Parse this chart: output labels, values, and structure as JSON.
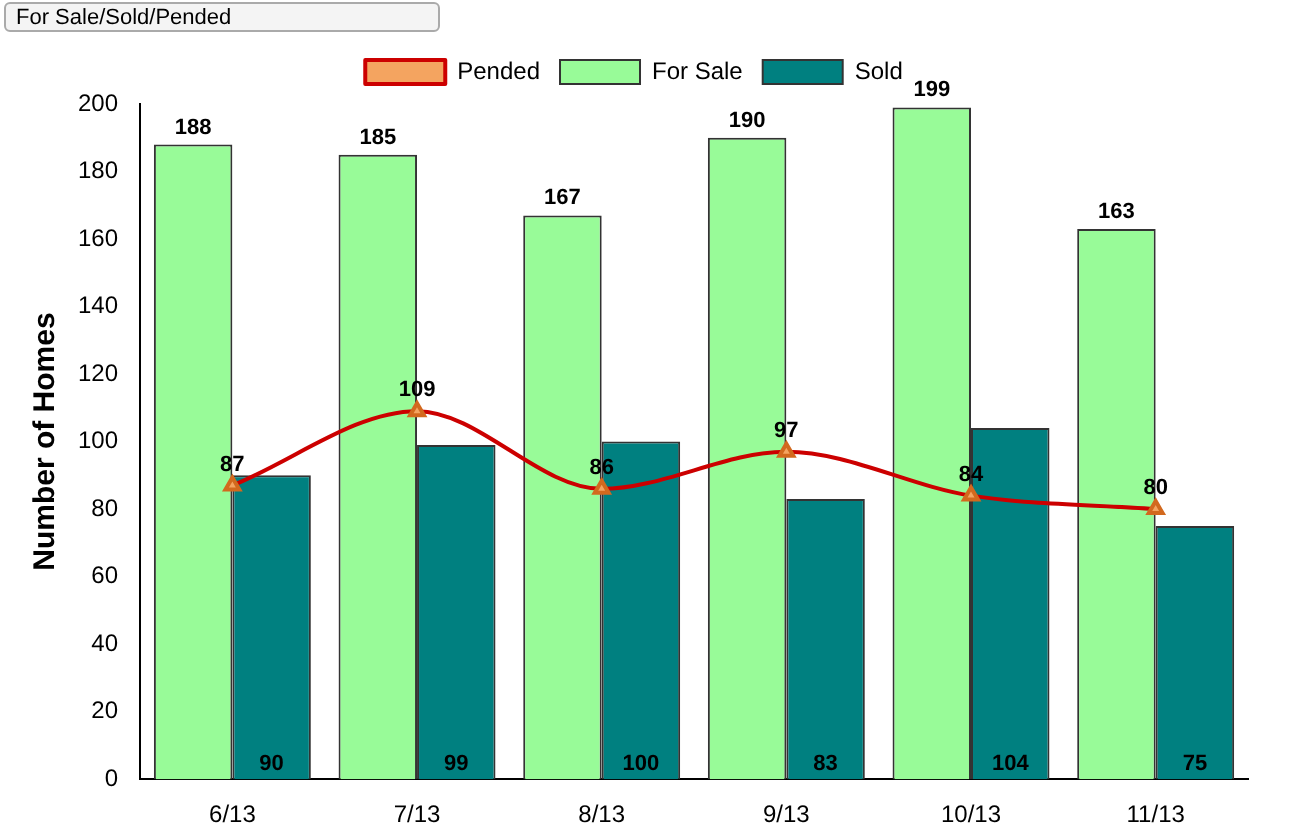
{
  "chart_data": {
    "type": "bar",
    "ylabel": "Number of Homes",
    "annotations": [
      "For Sale/Sold/Pended"
    ],
    "categories": [
      "6/13",
      "7/13",
      "8/13",
      "9/13",
      "10/13",
      "11/13"
    ],
    "series": [
      {
        "name": "For Sale",
        "color": "#98fb98",
        "values": [
          188,
          185,
          167,
          190,
          199,
          163
        ]
      },
      {
        "name": "Sold",
        "color": "#008080",
        "values": [
          90,
          99,
          100,
          83,
          104,
          75
        ]
      },
      {
        "name": "Pended",
        "type": "line",
        "color": "#cc0000",
        "values": [
          87,
          109,
          86,
          97,
          84,
          80
        ]
      }
    ],
    "ylim": [
      0,
      200
    ],
    "yticks": [
      0,
      20,
      40,
      60,
      80,
      100,
      120,
      140,
      160,
      180,
      200
    ],
    "data_labels": true,
    "legend": "top",
    "marker": "triangle",
    "grid": false
  }
}
